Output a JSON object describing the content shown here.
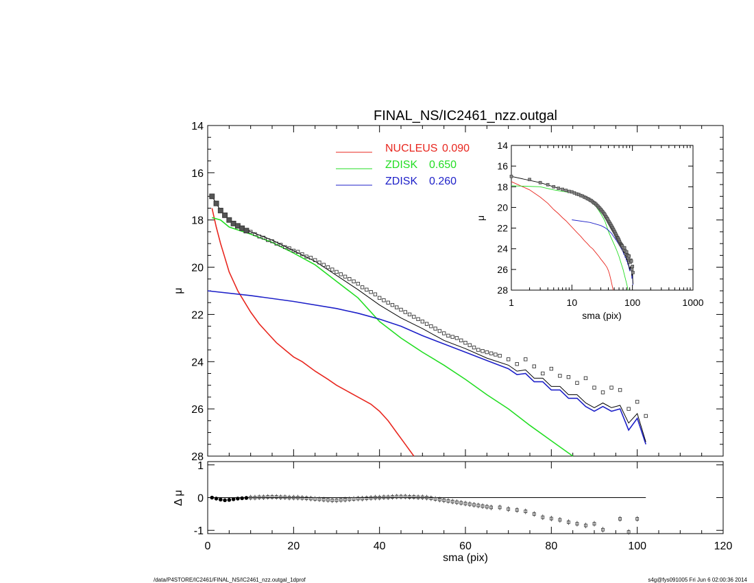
{
  "chart_data": [
    {
      "type": "line",
      "title": "FINAL_NS/IC2461_nzz.outgal",
      "xlabel": "sma (pix)",
      "ylabel": "μ",
      "xlim": [
        0,
        120
      ],
      "ylim": [
        28,
        14
      ],
      "xticks": [
        "0",
        "20",
        "40",
        "60",
        "80",
        "100",
        "120"
      ],
      "yticks": [
        "14",
        "16",
        "18",
        "20",
        "22",
        "24",
        "26",
        "28"
      ],
      "legend": [
        {
          "label": "NUCLEUS",
          "value": "0.090",
          "color": "#e8261e"
        },
        {
          "label": "ZDISK",
          "value": "0.650",
          "color": "#22dd22"
        },
        {
          "label": "ZDISK",
          "value": "0.260",
          "color": "#1c1fc8"
        }
      ],
      "series": [
        {
          "color": "#e8261e",
          "x": [
            1,
            2,
            3,
            4,
            5,
            6,
            7,
            8,
            10,
            12,
            14,
            16,
            18,
            20,
            22,
            25,
            28,
            30,
            32,
            35,
            38,
            40,
            42,
            44,
            46,
            48
          ],
          "y": [
            17.5,
            18.3,
            19.0,
            19.6,
            20.2,
            20.6,
            21.0,
            21.3,
            21.9,
            22.4,
            22.8,
            23.2,
            23.5,
            23.8,
            24.0,
            24.4,
            24.75,
            25.0,
            25.2,
            25.5,
            25.8,
            26.1,
            26.5,
            27.0,
            27.5,
            28.0
          ]
        },
        {
          "color": "#22dd22",
          "x": [
            1,
            3,
            5,
            10,
            15,
            20,
            25,
            30,
            35,
            40,
            45,
            50,
            55,
            60,
            65,
            70,
            75,
            80,
            85
          ],
          "y": [
            17.9,
            18.0,
            18.3,
            18.6,
            18.95,
            19.4,
            19.9,
            20.6,
            21.3,
            22.3,
            23.0,
            23.6,
            24.15,
            24.75,
            25.4,
            26.0,
            26.7,
            27.35,
            28.0
          ]
        },
        {
          "color": "#1c1fc8",
          "x": [
            0,
            10,
            20,
            30,
            35,
            40,
            45,
            50,
            55,
            60,
            65,
            70,
            72,
            74,
            76,
            78,
            80,
            82,
            84,
            86,
            88,
            90,
            92,
            94,
            96,
            98,
            100,
            102
          ],
          "y": [
            21.0,
            21.2,
            21.45,
            21.75,
            21.95,
            22.2,
            22.5,
            22.9,
            23.25,
            23.6,
            23.95,
            24.3,
            24.55,
            24.5,
            24.85,
            24.85,
            25.2,
            25.2,
            25.55,
            25.55,
            25.9,
            26.1,
            25.9,
            26.1,
            26.0,
            26.9,
            26.4,
            27.5
          ]
        },
        {
          "color": "#000000",
          "x": [
            1,
            3,
            5,
            10,
            15,
            20,
            25,
            30,
            35,
            40,
            45,
            50,
            55,
            60,
            65,
            70,
            72,
            74,
            76,
            78,
            80,
            82,
            84,
            86,
            88,
            90,
            92,
            94,
            96,
            98,
            100,
            102
          ],
          "y": [
            17.0,
            17.6,
            18.0,
            18.5,
            18.85,
            19.3,
            19.75,
            20.35,
            20.95,
            21.6,
            22.15,
            22.6,
            23.1,
            23.45,
            23.85,
            24.15,
            24.4,
            24.35,
            24.7,
            24.7,
            25.05,
            25.05,
            25.4,
            25.4,
            25.75,
            25.95,
            25.75,
            25.95,
            25.85,
            26.6,
            26.2,
            27.4
          ]
        }
      ],
      "data_points": {
        "x": [
          1,
          2,
          3,
          4,
          5,
          6,
          7,
          8,
          9,
          10,
          11,
          12,
          13,
          14,
          15,
          16,
          17,
          18,
          19,
          20,
          21,
          22,
          23,
          24,
          25,
          26,
          27,
          28,
          29,
          30,
          31,
          32,
          33,
          34,
          35,
          36,
          37,
          38,
          39,
          40,
          41,
          42,
          43,
          44,
          45,
          46,
          47,
          48,
          49,
          50,
          51,
          52,
          53,
          54,
          55,
          56,
          57,
          58,
          59,
          60,
          61,
          62,
          63,
          64,
          65,
          66,
          67,
          68,
          70,
          72,
          74,
          76,
          78,
          80,
          82,
          84,
          86,
          88,
          90,
          92,
          94,
          96,
          98,
          100,
          102
        ],
        "y": [
          17.0,
          17.3,
          17.6,
          17.8,
          18.0,
          18.15,
          18.25,
          18.35,
          18.45,
          18.5,
          18.6,
          18.7,
          18.75,
          18.85,
          18.9,
          19.0,
          19.05,
          19.15,
          19.2,
          19.3,
          19.35,
          19.45,
          19.55,
          19.6,
          19.7,
          19.8,
          19.9,
          20.0,
          20.1,
          20.2,
          20.3,
          20.4,
          20.5,
          20.6,
          20.7,
          20.85,
          20.95,
          21.05,
          21.15,
          21.3,
          21.4,
          21.5,
          21.6,
          21.7,
          21.8,
          21.9,
          22.0,
          22.1,
          22.2,
          22.3,
          22.4,
          22.5,
          22.6,
          22.7,
          22.8,
          22.9,
          22.95,
          23.0,
          23.1,
          23.2,
          23.3,
          23.4,
          23.5,
          23.55,
          23.6,
          23.65,
          23.7,
          23.75,
          23.9,
          24.1,
          23.9,
          24.2,
          24.5,
          24.3,
          24.6,
          24.65,
          24.9,
          24.7,
          25.1,
          25.3,
          25.1,
          25.2,
          26.0,
          25.7,
          26.3
        ]
      }
    },
    {
      "type": "scatter",
      "xlabel": "",
      "ylabel": "Δ μ",
      "xlim": [
        0,
        120
      ],
      "ylim": [
        -1.1,
        1.1
      ],
      "yticks": [
        "-1",
        "0",
        "1"
      ],
      "zero_line_x": [
        0,
        102
      ],
      "x": [
        1,
        2,
        3,
        4,
        5,
        6,
        7,
        8,
        9,
        10,
        11,
        12,
        13,
        14,
        15,
        16,
        17,
        18,
        19,
        20,
        21,
        22,
        23,
        24,
        25,
        26,
        27,
        28,
        29,
        30,
        31,
        32,
        33,
        34,
        35,
        36,
        37,
        38,
        39,
        40,
        41,
        42,
        43,
        44,
        45,
        46,
        47,
        48,
        49,
        50,
        51,
        52,
        53,
        54,
        55,
        56,
        57,
        58,
        59,
        60,
        61,
        62,
        63,
        64,
        65,
        66,
        68,
        70,
        72,
        74,
        76,
        78,
        80,
        82,
        84,
        86,
        88,
        90,
        92,
        96,
        98,
        100
      ],
      "y": [
        0.0,
        -0.03,
        -0.06,
        -0.08,
        -0.07,
        -0.05,
        -0.03,
        -0.02,
        -0.01,
        0.0,
        0.0,
        0.01,
        0.01,
        0.02,
        0.02,
        0.02,
        0.01,
        0.01,
        0.0,
        0.0,
        0.0,
        -0.01,
        -0.02,
        -0.03,
        -0.04,
        -0.05,
        -0.06,
        -0.07,
        -0.08,
        -0.08,
        -0.07,
        -0.06,
        -0.05,
        -0.04,
        -0.03,
        -0.03,
        -0.02,
        -0.01,
        0.0,
        0.0,
        0.01,
        0.01,
        0.02,
        0.03,
        0.03,
        0.03,
        0.02,
        0.02,
        0.01,
        0.01,
        0.0,
        -0.02,
        -0.04,
        -0.06,
        -0.08,
        -0.1,
        -0.12,
        -0.14,
        -0.16,
        -0.18,
        -0.2,
        -0.22,
        -0.24,
        -0.26,
        -0.28,
        -0.3,
        -0.3,
        -0.35,
        -0.38,
        -0.42,
        -0.5,
        -0.6,
        -0.64,
        -0.68,
        -0.75,
        -0.8,
        -0.85,
        -0.8,
        -0.98,
        -0.65,
        -1.05,
        -0.65
      ]
    },
    {
      "type": "line",
      "title": "",
      "xlabel": "sma (pix)",
      "ylabel": "μ",
      "xscale": "log",
      "xlim": [
        1,
        1000
      ],
      "ylim": [
        28,
        14
      ],
      "xticks": [
        "1",
        "10",
        "100",
        "1000"
      ],
      "yticks": [
        "14",
        "16",
        "18",
        "20",
        "22",
        "24",
        "26",
        "28"
      ]
    }
  ],
  "footer": {
    "left": "/data/P4STORE/IC2461/FINAL_NS/IC2461_nzz.outgal_1dprof",
    "right": "s4g@fys091005  Fri Jun  6 02:00:36 2014"
  }
}
